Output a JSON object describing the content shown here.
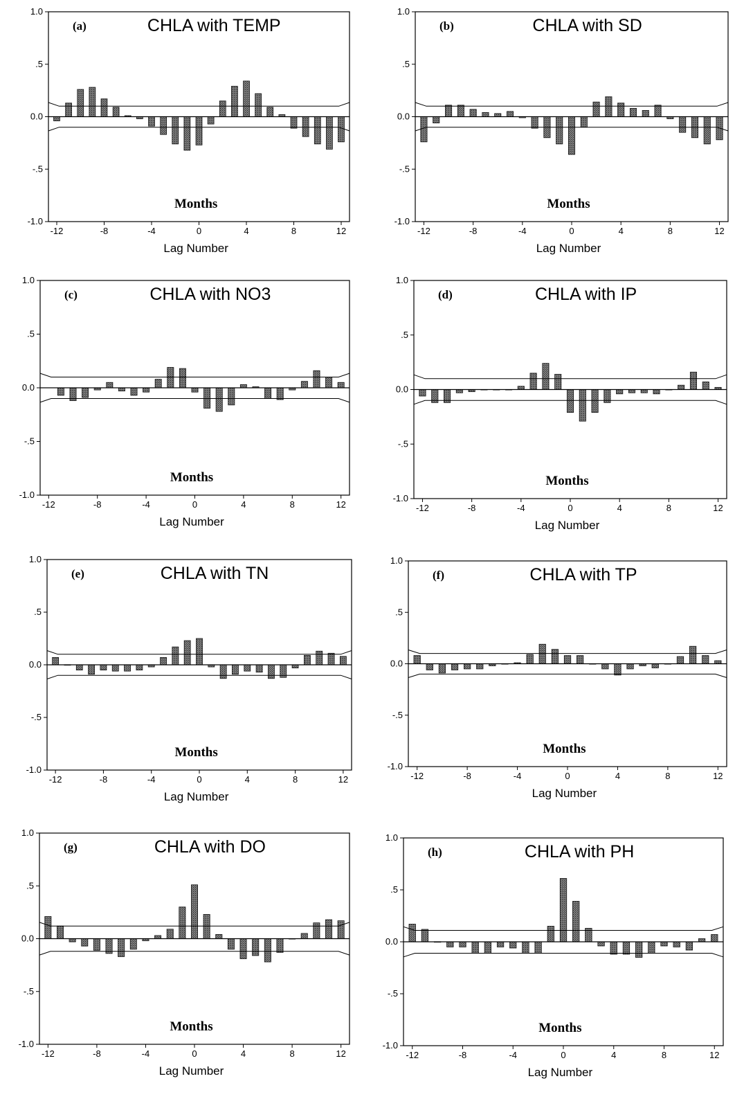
{
  "chart_data": [
    {
      "type": "bar",
      "panel": "(a)",
      "title": "CHLA with TEMP",
      "annotation": "Months",
      "xlabel": "Lag Number",
      "x": [
        -12,
        -11,
        -10,
        -9,
        -8,
        -7,
        -6,
        -5,
        -4,
        -3,
        -2,
        -1,
        0,
        1,
        2,
        3,
        4,
        5,
        6,
        7,
        8,
        9,
        10,
        11,
        12
      ],
      "values": [
        -0.04,
        0.13,
        0.26,
        0.28,
        0.17,
        0.09,
        0.01,
        -0.02,
        -0.09,
        -0.17,
        -0.26,
        -0.32,
        -0.27,
        -0.07,
        0.15,
        0.29,
        0.34,
        0.22,
        0.09,
        0.02,
        -0.11,
        -0.19,
        -0.26,
        -0.31,
        -0.24
      ],
      "x_ticks": [
        -12,
        -8,
        -4,
        0,
        4,
        8,
        12
      ],
      "y_ticks": [
        "1.0",
        ".5",
        "0.0",
        "-.5",
        "-1.0"
      ],
      "ylim": [
        -1,
        1
      ],
      "confidence_limit": 0.1
    },
    {
      "type": "bar",
      "panel": "(b)",
      "title": "CHLA with SD",
      "annotation": "Months",
      "xlabel": "Lag Number",
      "x": [
        -12,
        -11,
        -10,
        -9,
        -8,
        -7,
        -6,
        -5,
        -4,
        -3,
        -2,
        -1,
        0,
        1,
        2,
        3,
        4,
        5,
        6,
        7,
        8,
        9,
        10,
        11,
        12
      ],
      "values": [
        -0.24,
        -0.06,
        0.11,
        0.11,
        0.07,
        0.04,
        0.03,
        0.05,
        -0.01,
        -0.11,
        -0.2,
        -0.26,
        -0.36,
        -0.1,
        0.14,
        0.19,
        0.13,
        0.08,
        0.06,
        0.11,
        -0.02,
        -0.15,
        -0.2,
        -0.26,
        -0.22
      ],
      "x_ticks": [
        -12,
        -8,
        -4,
        0,
        4,
        8,
        12
      ],
      "y_ticks": [
        "1.0",
        ".5",
        "0.0",
        "-.5",
        "-1.0"
      ],
      "ylim": [
        -1,
        1
      ],
      "confidence_limit": 0.1
    },
    {
      "type": "bar",
      "panel": "(c)",
      "title": "CHLA with NO3",
      "annotation": "Months",
      "xlabel": "Lag Number",
      "x": [
        -11,
        -10,
        -9,
        -8,
        -7,
        -6,
        -5,
        -4,
        -3,
        -2,
        -1,
        0,
        1,
        2,
        3,
        4,
        5,
        6,
        7,
        8,
        9,
        10,
        11,
        12
      ],
      "values": [
        -0.07,
        -0.12,
        -0.09,
        -0.02,
        0.05,
        -0.03,
        -0.07,
        -0.04,
        0.08,
        0.19,
        0.18,
        -0.04,
        -0.19,
        -0.22,
        -0.16,
        0.03,
        0.01,
        -0.1,
        -0.11,
        -0.02,
        0.06,
        0.16,
        0.1,
        0.05
      ],
      "x_ticks": [
        -12,
        -8,
        -4,
        0,
        4,
        8,
        12
      ],
      "y_ticks": [
        "1.0",
        ".5",
        "0.0",
        "-.5",
        "-1.0"
      ],
      "ylim": [
        -1,
        1
      ],
      "confidence_limit": 0.1
    },
    {
      "type": "bar",
      "panel": "(d)",
      "title": "CHLA with IP",
      "annotation": "Months",
      "xlabel": "Lag Number",
      "x": [
        -12,
        -11,
        -10,
        -9,
        -8,
        -7,
        -6,
        -5,
        -4,
        -3,
        -2,
        -1,
        0,
        1,
        2,
        3,
        4,
        5,
        6,
        7,
        8,
        9,
        10,
        11,
        12
      ],
      "values": [
        -0.06,
        -0.12,
        -0.12,
        -0.03,
        -0.02,
        0,
        0,
        0,
        0.03,
        0.15,
        0.24,
        0.14,
        -0.21,
        -0.29,
        -0.21,
        -0.12,
        -0.04,
        -0.03,
        -0.03,
        -0.04,
        0,
        0.04,
        0.16,
        0.07,
        0.02
      ],
      "x_ticks": [
        -12,
        -8,
        -4,
        0,
        4,
        8,
        12
      ],
      "y_ticks": [
        "1.0",
        ".5",
        "0.0",
        "-.5",
        "-1.0"
      ],
      "ylim": [
        -1,
        1
      ],
      "confidence_limit": 0.1
    },
    {
      "type": "bar",
      "panel": "(e)",
      "title": "CHLA with TN",
      "annotation": "Months",
      "xlabel": "Lag Number",
      "x": [
        -12,
        -11,
        -10,
        -9,
        -8,
        -7,
        -6,
        -5,
        -4,
        -3,
        -2,
        -1,
        0,
        1,
        2,
        3,
        4,
        5,
        6,
        7,
        8,
        9,
        10,
        11,
        12
      ],
      "values": [
        0.07,
        0,
        -0.05,
        -0.09,
        -0.05,
        -0.06,
        -0.06,
        -0.05,
        -0.02,
        0.07,
        0.17,
        0.23,
        0.25,
        -0.02,
        -0.13,
        -0.09,
        -0.06,
        -0.07,
        -0.13,
        -0.12,
        -0.03,
        0.09,
        0.13,
        0.11,
        0.08
      ],
      "x_ticks": [
        -12,
        -8,
        -4,
        0,
        4,
        8,
        12
      ],
      "y_ticks": [
        "1.0",
        ".5",
        "0.0",
        "-.5",
        "-1.0"
      ],
      "ylim": [
        -1,
        1
      ],
      "confidence_limit": 0.1
    },
    {
      "type": "bar",
      "panel": "(f)",
      "title": "CHLA with TP",
      "annotation": "Months",
      "xlabel": "Lag Number",
      "x": [
        -12,
        -11,
        -10,
        -9,
        -8,
        -7,
        -6,
        -5,
        -4,
        -3,
        -2,
        -1,
        0,
        1,
        2,
        3,
        4,
        5,
        6,
        7,
        8,
        9,
        10,
        11,
        12
      ],
      "values": [
        0.08,
        -0.06,
        -0.09,
        -0.06,
        -0.05,
        -0.05,
        -0.02,
        0,
        0.01,
        0.09,
        0.19,
        0.14,
        0.08,
        0.08,
        0,
        -0.05,
        -0.11,
        -0.05,
        -0.02,
        -0.04,
        0,
        0.07,
        0.17,
        0.08,
        0.03
      ],
      "x_ticks": [
        -12,
        -8,
        -4,
        0,
        4,
        8,
        12
      ],
      "y_ticks": [
        "1.0",
        ".5",
        "0.0",
        "-.5",
        "-1.0"
      ],
      "ylim": [
        -1,
        1
      ],
      "confidence_limit": 0.1
    },
    {
      "type": "bar",
      "panel": "(g)",
      "title": "CHLA with DO",
      "annotation": "Months",
      "xlabel": "Lag Number",
      "x": [
        -12,
        -11,
        -10,
        -9,
        -8,
        -7,
        -6,
        -5,
        -4,
        -3,
        -2,
        -1,
        0,
        1,
        2,
        3,
        4,
        5,
        6,
        7,
        8,
        9,
        10,
        11,
        12
      ],
      "values": [
        0.21,
        0.12,
        -0.03,
        -0.07,
        -0.11,
        -0.14,
        -0.17,
        -0.1,
        -0.02,
        0.03,
        0.09,
        0.3,
        0.51,
        0.23,
        0.04,
        -0.1,
        -0.19,
        -0.16,
        -0.22,
        -0.13,
        0,
        0.05,
        0.15,
        0.18,
        0.17
      ],
      "x_ticks": [
        -12,
        -8,
        -4,
        0,
        4,
        8,
        12
      ],
      "y_ticks": [
        "1.0",
        ".5",
        "0.0",
        "-.5",
        "-1.0"
      ],
      "ylim": [
        -1,
        1
      ],
      "confidence_limit": 0.12
    },
    {
      "type": "bar",
      "panel": "(h)",
      "title": "CHLA with PH",
      "annotation": "Months",
      "xlabel": "Lag Number",
      "x": [
        -12,
        -11,
        -10,
        -9,
        -8,
        -7,
        -6,
        -5,
        -4,
        -3,
        -2,
        -1,
        0,
        1,
        2,
        3,
        4,
        5,
        6,
        7,
        8,
        9,
        10,
        11,
        12
      ],
      "values": [
        0.17,
        0.12,
        0,
        -0.05,
        -0.05,
        -0.11,
        -0.11,
        -0.05,
        -0.06,
        -0.11,
        -0.11,
        0.15,
        0.61,
        0.39,
        0.13,
        -0.04,
        -0.12,
        -0.12,
        -0.15,
        -0.11,
        -0.04,
        -0.05,
        -0.08,
        0.03,
        0.07
      ],
      "x_ticks": [
        -12,
        -8,
        -4,
        0,
        4,
        8,
        12
      ],
      "y_ticks": [
        "1.0",
        ".5",
        "0.0",
        "-.5",
        "-1.0"
      ],
      "ylim": [
        -1,
        1
      ],
      "confidence_limit": 0.11
    }
  ],
  "colors": {
    "bar_fill": "#6e6e6e",
    "bar_stroke": "#111111",
    "axis": "#000000",
    "background": "#ffffff"
  }
}
